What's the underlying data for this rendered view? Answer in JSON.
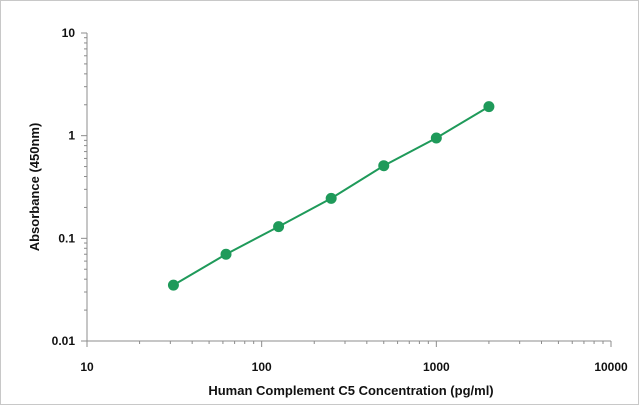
{
  "chart_data": {
    "type": "scatter",
    "title": "",
    "xlabel": "Human Complement C5 Concentration (pg/ml)",
    "ylabel": "Absorbance (450nm)",
    "xscale": "log",
    "yscale": "log",
    "xlim": [
      10,
      10000
    ],
    "ylim": [
      0.01,
      10
    ],
    "x_ticks": [
      "10",
      "100",
      "1000",
      "10000"
    ],
    "y_ticks": [
      "10",
      "1",
      "0.1",
      "0.01"
    ],
    "grid": false,
    "legend": "none",
    "series": [
      {
        "color": "#1f9a5a",
        "marker": "circle",
        "line": "connected",
        "points": [
          {
            "x": 31.25,
            "y": 0.035
          },
          {
            "x": 62.5,
            "y": 0.07
          },
          {
            "x": 125,
            "y": 0.13
          },
          {
            "x": 250,
            "y": 0.245
          },
          {
            "x": 500,
            "y": 0.51
          },
          {
            "x": 1000,
            "y": 0.95
          },
          {
            "x": 2000,
            "y": 1.92
          }
        ]
      }
    ]
  }
}
